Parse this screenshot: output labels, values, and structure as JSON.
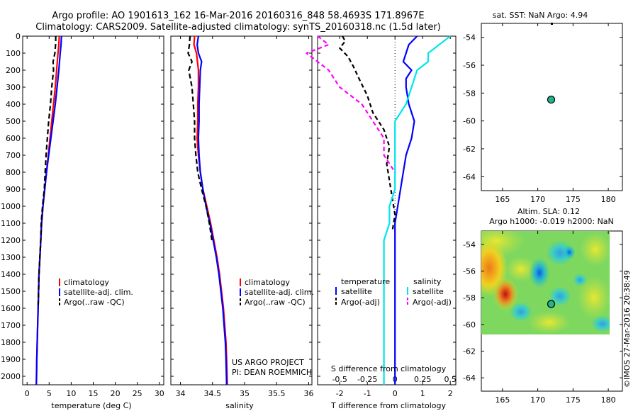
{
  "header": {
    "title_line1": "Argo profile: AO 1901613_162 16-Mar-2016 20160316_848 58.4693S 171.8967E",
    "title_line2": "Climatology: CARS2009. Satellite-adjusted climatology: synTS_20160318.nc (1.5d later)"
  },
  "credits": {
    "project": "US ARGO PROJECT",
    "pi": "PI: DEAN ROEMMICH",
    "imos": "©IMOS 27-Mar-2016 20:38:49"
  },
  "colors": {
    "climatology": "#ff0000",
    "satellite": "#0000ff",
    "argo": "#000000",
    "sal_satellite": "#00e5ee",
    "sal_argo": "#ff00ff"
  },
  "chart_data": [
    {
      "type": "line",
      "panel": "temperature",
      "xlabel": "temperature (deg C)",
      "ylim": [
        2050,
        0
      ],
      "xlim": [
        -1,
        31
      ],
      "xticks": [
        "0",
        "5",
        "10",
        "15",
        "20",
        "25",
        "30"
      ],
      "yticks": [
        "0",
        "100",
        "200",
        "300",
        "400",
        "500",
        "600",
        "700",
        "800",
        "900",
        "1000",
        "1100",
        "1200",
        "1300",
        "1400",
        "1500",
        "1600",
        "1700",
        "1800",
        "1900",
        "2000"
      ],
      "legend": [
        "climatology",
        "satellite-adj. clim.",
        "Argo(..raw -QC)"
      ],
      "series": [
        {
          "name": "climatology",
          "color": "#ff0000",
          "dash": "",
          "points": [
            [
              7.3,
              0
            ],
            [
              7.2,
              50
            ],
            [
              7.0,
              100
            ],
            [
              6.7,
              200
            ],
            [
              6.4,
              300
            ],
            [
              6.0,
              400
            ],
            [
              5.6,
              500
            ],
            [
              5.2,
              600
            ],
            [
              4.8,
              700
            ],
            [
              4.4,
              800
            ],
            [
              4.0,
              900
            ],
            [
              3.6,
              1000
            ],
            [
              3.3,
              1100
            ],
            [
              3.1,
              1200
            ],
            [
              2.9,
              1300
            ],
            [
              2.7,
              1400
            ],
            [
              2.6,
              1500
            ],
            [
              2.5,
              1600
            ],
            [
              2.4,
              1700
            ],
            [
              2.3,
              1800
            ],
            [
              2.2,
              1900
            ],
            [
              2.1,
              2050
            ]
          ]
        },
        {
          "name": "satellite-adj. clim.",
          "color": "#0000ff",
          "dash": "",
          "points": [
            [
              7.8,
              0
            ],
            [
              7.7,
              50
            ],
            [
              7.5,
              100
            ],
            [
              7.2,
              200
            ],
            [
              6.8,
              300
            ],
            [
              6.4,
              400
            ],
            [
              5.9,
              500
            ],
            [
              5.4,
              600
            ],
            [
              4.9,
              700
            ],
            [
              4.4,
              800
            ],
            [
              4.0,
              900
            ],
            [
              3.6,
              1000
            ],
            [
              3.3,
              1100
            ],
            [
              3.1,
              1200
            ],
            [
              2.9,
              1300
            ],
            [
              2.7,
              1400
            ],
            [
              2.6,
              1500
            ],
            [
              2.5,
              1600
            ],
            [
              2.4,
              1700
            ],
            [
              2.3,
              1800
            ],
            [
              2.2,
              1900
            ],
            [
              2.1,
              2050
            ]
          ]
        },
        {
          "name": "Argo(..raw -QC)",
          "color": "#000000",
          "dash": "7,4",
          "points": [
            [
              6.5,
              0
            ],
            [
              6.5,
              40
            ],
            [
              6.3,
              100
            ],
            [
              5.9,
              150
            ],
            [
              6.0,
              200
            ],
            [
              5.6,
              300
            ],
            [
              5.3,
              400
            ],
            [
              4.9,
              500
            ],
            [
              4.6,
              600
            ],
            [
              4.3,
              700
            ],
            [
              4.1,
              800
            ],
            [
              3.9,
              900
            ],
            [
              3.5,
              1000
            ],
            [
              3.2,
              1100
            ],
            [
              3.1,
              1200
            ],
            [
              2.9,
              1300
            ],
            [
              2.7,
              1400
            ],
            [
              2.6,
              1500
            ],
            [
              2.5,
              1600
            ]
          ]
        }
      ]
    },
    {
      "type": "line",
      "panel": "salinity",
      "xlabel": "salinity",
      "ylim": [
        2050,
        0
      ],
      "xlim": [
        33.85,
        36.05
      ],
      "xticks": [
        "34",
        "34.5",
        "35",
        "35.5",
        "36"
      ],
      "legend": [
        "climatology",
        "satellite-adj. clim.",
        "Argo(..raw -QC)"
      ],
      "series": [
        {
          "name": "climatology",
          "color": "#ff0000",
          "dash": "",
          "points": [
            [
              34.22,
              0
            ],
            [
              34.21,
              50
            ],
            [
              34.25,
              100
            ],
            [
              34.28,
              200
            ],
            [
              34.28,
              300
            ],
            [
              34.27,
              400
            ],
            [
              34.27,
              500
            ],
            [
              34.26,
              600
            ],
            [
              34.28,
              700
            ],
            [
              34.31,
              800
            ],
            [
              34.35,
              900
            ],
            [
              34.41,
              1000
            ],
            [
              34.47,
              1100
            ],
            [
              34.52,
              1200
            ],
            [
              34.57,
              1300
            ],
            [
              34.61,
              1400
            ],
            [
              34.64,
              1500
            ],
            [
              34.67,
              1600
            ],
            [
              34.69,
              1700
            ],
            [
              34.71,
              1800
            ],
            [
              34.72,
              1900
            ],
            [
              34.73,
              2050
            ]
          ]
        },
        {
          "name": "satellite-adj. clim.",
          "color": "#0000ff",
          "dash": "",
          "points": [
            [
              34.28,
              0
            ],
            [
              34.26,
              50
            ],
            [
              34.28,
              100
            ],
            [
              34.33,
              150
            ],
            [
              34.31,
              200
            ],
            [
              34.3,
              300
            ],
            [
              34.29,
              400
            ],
            [
              34.29,
              500
            ],
            [
              34.28,
              600
            ],
            [
              34.29,
              700
            ],
            [
              34.31,
              800
            ],
            [
              34.35,
              900
            ],
            [
              34.4,
              1000
            ],
            [
              34.46,
              1100
            ],
            [
              34.51,
              1200
            ],
            [
              34.56,
              1300
            ],
            [
              34.6,
              1400
            ],
            [
              34.63,
              1500
            ],
            [
              34.66,
              1600
            ],
            [
              34.68,
              1700
            ],
            [
              34.7,
              1800
            ],
            [
              34.71,
              1900
            ],
            [
              34.72,
              2050
            ]
          ]
        },
        {
          "name": "Argo(..raw -QC)",
          "color": "#000000",
          "dash": "7,4",
          "points": [
            [
              34.15,
              0
            ],
            [
              34.14,
              50
            ],
            [
              34.12,
              100
            ],
            [
              34.18,
              150
            ],
            [
              34.13,
              200
            ],
            [
              34.18,
              300
            ],
            [
              34.2,
              400
            ],
            [
              34.22,
              500
            ],
            [
              34.22,
              600
            ],
            [
              34.24,
              700
            ],
            [
              34.27,
              800
            ],
            [
              34.33,
              900
            ],
            [
              34.4,
              1000
            ],
            [
              34.45,
              1100
            ],
            [
              34.49,
              1200
            ]
          ]
        }
      ]
    },
    {
      "type": "line",
      "panel": "differences",
      "xlabel": "T difference from climatology",
      "xlabel_top": "S difference from climatology",
      "ylim": [
        2050,
        0
      ],
      "xlim": [
        -2.8,
        2.2
      ],
      "xticks_T": [
        "-2",
        "-1",
        "0",
        "1",
        "2"
      ],
      "xticks_S": [
        "-0.5",
        "-0.25",
        "0",
        "0.25",
        "0.5"
      ],
      "legend": {
        "temperature_title": "temperature",
        "salinity_title": "salinity",
        "temperature_items": [
          "satellite",
          "Argo(-adj)"
        ],
        "salinity_items": [
          "satellite",
          "Argo(-adj)"
        ]
      },
      "series": [
        {
          "name": "satellite",
          "color": "#0000ff",
          "dash": "",
          "points": [
            [
              0.8,
              0
            ],
            [
              0.5,
              50
            ],
            [
              0.4,
              100
            ],
            [
              0.3,
              150
            ],
            [
              0.6,
              200
            ],
            [
              0.4,
              250
            ],
            [
              0.4,
              300
            ],
            [
              0.5,
              400
            ],
            [
              0.7,
              500
            ],
            [
              0.6,
              600
            ],
            [
              0.4,
              700
            ],
            [
              0.3,
              800
            ],
            [
              0.2,
              900
            ],
            [
              0.1,
              1000
            ],
            [
              0.0,
              1100
            ],
            [
              0.0,
              1500
            ],
            [
              0.0,
              2050
            ]
          ]
        },
        {
          "name": "Argo(-adj)",
          "color": "#000000",
          "dash": "6,4",
          "points": [
            [
              -1.9,
              0
            ],
            [
              -1.8,
              30
            ],
            [
              -2.0,
              70
            ],
            [
              -1.7,
              120
            ],
            [
              -1.5,
              180
            ],
            [
              -1.3,
              250
            ],
            [
              -1.0,
              350
            ],
            [
              -0.8,
              450
            ],
            [
              -0.4,
              550
            ],
            [
              -0.2,
              650
            ],
            [
              -0.3,
              750
            ],
            [
              -0.2,
              850
            ],
            [
              -0.1,
              950
            ],
            [
              0.0,
              1050
            ],
            [
              -0.1,
              1150
            ]
          ]
        },
        {
          "name": "satellite",
          "color": "#00e5ee",
          "dash": "",
          "points": [
            [
              0.5,
              0
            ],
            [
              0.4,
              50
            ],
            [
              0.3,
              100
            ],
            [
              0.3,
              150
            ],
            [
              0.2,
              200
            ],
            [
              0.15,
              300
            ],
            [
              0.1,
              400
            ],
            [
              0.0,
              500
            ],
            [
              0.0,
              600
            ],
            [
              0.0,
              700
            ],
            [
              0.0,
              800
            ],
            [
              0.0,
              900
            ],
            [
              -0.05,
              1000
            ],
            [
              -0.05,
              1100
            ],
            [
              -0.1,
              1200
            ],
            [
              -0.1,
              1400
            ],
            [
              -0.1,
              1600
            ],
            [
              -0.1,
              1800
            ],
            [
              -0.1,
              2050
            ]
          ]
        },
        {
          "name": "Argo(-adj)",
          "color": "#ff00ff",
          "dash": "6,4",
          "points": [
            [
              -0.7,
              0
            ],
            [
              -0.6,
              50
            ],
            [
              -0.8,
              100
            ],
            [
              -0.6,
              200
            ],
            [
              -0.5,
              300
            ],
            [
              -0.3,
              400
            ],
            [
              -0.2,
              500
            ],
            [
              -0.1,
              600
            ],
            [
              -0.1,
              700
            ],
            [
              0.0,
              800
            ]
          ]
        }
      ]
    },
    {
      "type": "scatter",
      "panel": "map-sst",
      "title": "sat. SST: NaN Argo: 4.94",
      "xlim": [
        162,
        182
      ],
      "ylim": [
        -65,
        -53
      ],
      "xticks": [
        "165",
        "170",
        "175",
        "180"
      ],
      "yticks": [
        "-54",
        "-56",
        "-58",
        "-60",
        "-62",
        "-64"
      ],
      "points": [
        [
          171.9,
          -58.47
        ]
      ]
    },
    {
      "type": "heatmap",
      "panel": "map-sla",
      "title_line1": "Altim. SLA: 0.12",
      "title_line2": "Argo h1000: -0.019 h2000: NaN",
      "xlim": [
        162,
        182
      ],
      "ylim": [
        -65,
        -53
      ],
      "xticks": [
        "165",
        "170",
        "175",
        "180"
      ],
      "yticks": [
        "-54",
        "-56",
        "-58",
        "-60",
        "-62",
        "-64"
      ],
      "points": [
        [
          171.9,
          -58.47
        ]
      ]
    }
  ]
}
